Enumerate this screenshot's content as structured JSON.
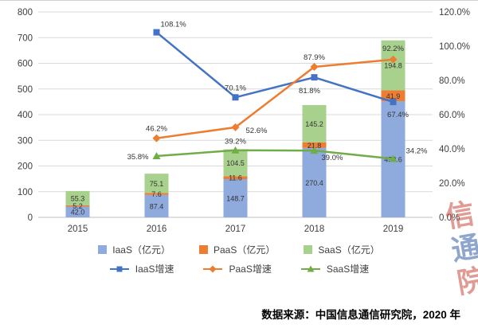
{
  "source": "数据来源：中国信息通信研究院，2020 年",
  "watermark": "信通院",
  "chart_data": {
    "type": "bar+line combo",
    "categories": [
      "2015",
      "2016",
      "2017",
      "2018",
      "2019"
    ],
    "bar_series": [
      {
        "key": "iaas",
        "name": "IaaS（亿元）",
        "color": "#8FAADC",
        "values": [
          42.0,
          87.4,
          148.7,
          270.4,
          452.6
        ]
      },
      {
        "key": "paas",
        "name": "PaaS（亿元）",
        "color": "#ED7D31",
        "values": [
          5.2,
          7.6,
          11.6,
          21.8,
          41.9
        ]
      },
      {
        "key": "saas",
        "name": "SaaS（亿元）",
        "color": "#A9D18E",
        "values": [
          55.3,
          75.1,
          104.5,
          145.2,
          194.8
        ]
      }
    ],
    "line_series": [
      {
        "key": "iaas-growth",
        "name": "IaaS增速",
        "color": "#4472C4",
        "marker": "square",
        "values": [
          null,
          108.1,
          70.1,
          81.8,
          67.4
        ]
      },
      {
        "key": "paas-growth",
        "name": "PaaS增速",
        "color": "#ED7D31",
        "marker": "diamond",
        "values": [
          null,
          46.2,
          52.6,
          87.9,
          92.2
        ]
      },
      {
        "key": "saas-growth",
        "name": "SaaS增速",
        "color": "#70AD47",
        "marker": "triangle",
        "values": [
          null,
          35.8,
          39.2,
          39.0,
          34.2
        ]
      }
    ],
    "left_axis": {
      "min": 0,
      "max": 800,
      "step": 100
    },
    "right_axis": {
      "min": 0,
      "max": 120,
      "step": 20,
      "suffix": "%"
    },
    "grid": true,
    "legend_position": "bottom"
  }
}
